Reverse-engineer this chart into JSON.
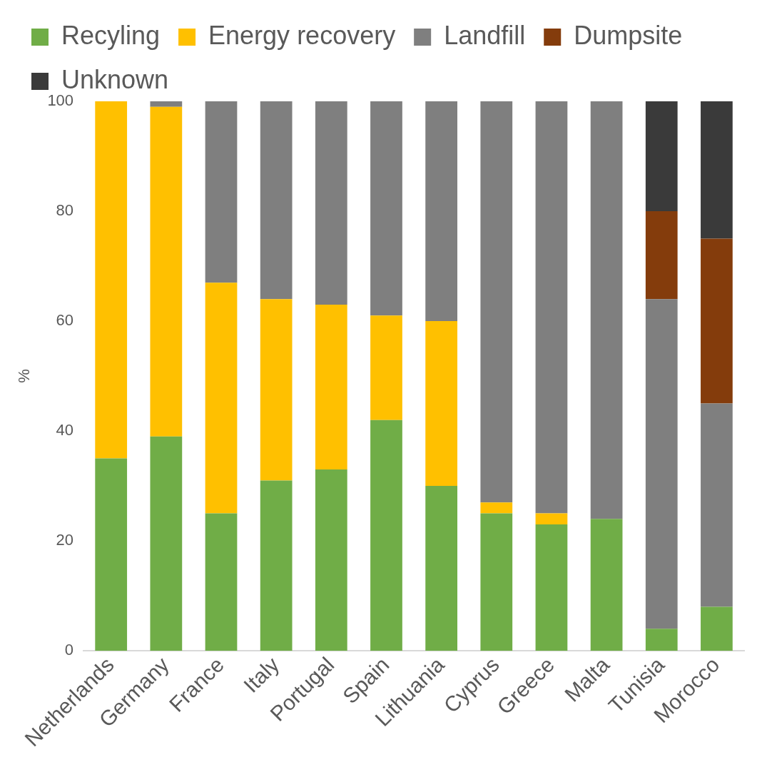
{
  "chart_data": {
    "type": "bar",
    "stacked": true,
    "ylabel": "%",
    "categories": [
      "Netherlands",
      "Germany",
      "France",
      "Italy",
      "Portugal",
      "Spain",
      "Lithuania",
      "Cyprus",
      "Greece",
      "Malta",
      "Tunisia",
      "Morocco"
    ],
    "series": [
      {
        "name": "Recyling",
        "color": "#70ad47",
        "values": [
          35,
          39,
          25,
          31,
          33,
          42,
          30,
          25,
          23,
          24,
          4,
          8
        ]
      },
      {
        "name": "Energy recovery",
        "color": "#ffc000",
        "values": [
          65,
          60,
          42,
          33,
          30,
          19,
          30,
          2,
          2,
          0,
          0,
          0
        ]
      },
      {
        "name": "Landfill",
        "color": "#7f7f7f",
        "values": [
          0,
          1,
          33,
          36,
          37,
          39,
          40,
          73,
          75,
          76,
          60,
          37
        ]
      },
      {
        "name": "Dumpsite",
        "color": "#843c0c",
        "values": [
          0,
          0,
          0,
          0,
          0,
          0,
          0,
          0,
          0,
          0,
          16,
          30
        ]
      },
      {
        "name": "Unknown",
        "color": "#3a3a3a",
        "values": [
          0,
          0,
          0,
          0,
          0,
          0,
          0,
          0,
          0,
          0,
          20,
          25
        ]
      }
    ],
    "ylim": [
      0,
      100
    ],
    "yticks": [
      0,
      20,
      40,
      60,
      80,
      100
    ],
    "grid": false,
    "legend": "top"
  }
}
